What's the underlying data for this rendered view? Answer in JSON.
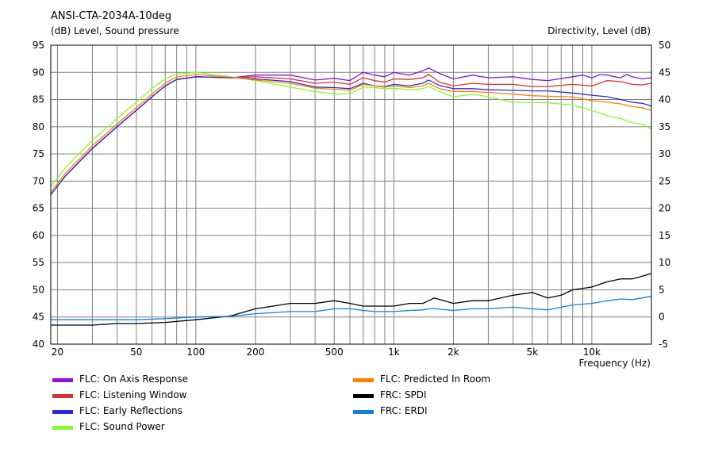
{
  "chart_data": {
    "type": "line",
    "title": "ANSI-CTA-2034A-10deg",
    "ylabel": "(dB)  Level, Sound pressure",
    "y2label": "Directivity, Level  (dB)",
    "xlabel": "Frequency  (Hz)",
    "xscale": "log",
    "xlim": [
      18.5,
      20000
    ],
    "ylim": [
      40,
      95
    ],
    "y2lim": [
      -5,
      50
    ],
    "grid": true,
    "legend_position": "bottom",
    "x_ticks": [
      {
        "value": 20,
        "label": "20"
      },
      {
        "value": 50,
        "label": "50"
      },
      {
        "value": 100,
        "label": "100"
      },
      {
        "value": 200,
        "label": "200"
      },
      {
        "value": 500,
        "label": "500"
      },
      {
        "value": 1000,
        "label": "1k"
      },
      {
        "value": 2000,
        "label": "2k"
      },
      {
        "value": 5000,
        "label": "5k"
      },
      {
        "value": 10000,
        "label": "10k"
      }
    ],
    "y_ticks": [
      "40",
      "45",
      "50",
      "55",
      "60",
      "65",
      "70",
      "75",
      "80",
      "85",
      "90",
      "95"
    ],
    "y2_ticks": [
      "-5",
      "0",
      "5",
      "10",
      "15",
      "20",
      "25",
      "30",
      "35",
      "40",
      "45",
      "50"
    ],
    "legend": [
      {
        "name": "FLC: On Axis Response",
        "color": "#8a16d8"
      },
      {
        "name": "FLC: Listening Window",
        "color": "#d83030"
      },
      {
        "name": "FLC: Early Reflections",
        "color": "#2a2ae0"
      },
      {
        "name": "FLC: Sound Power",
        "color": "#80ff30"
      },
      {
        "name": "FLC: Predicted In Room",
        "color": "#ff8000"
      },
      {
        "name": "FRC: SPDI",
        "color": "#000000"
      },
      {
        "name": "FRC: ERDI",
        "color": "#1080e0"
      }
    ],
    "series": [
      {
        "name": "FLC: On Axis Response",
        "color": "#8a16d8",
        "axis": "left",
        "x": [
          18.5,
          22,
          30,
          40,
          50,
          60,
          70,
          80,
          100,
          150,
          200,
          300,
          400,
          500,
          600,
          700,
          800,
          900,
          1000,
          1200,
          1400,
          1500,
          1700,
          2000,
          2500,
          3000,
          4000,
          5000,
          6000,
          8000,
          9000,
          10000,
          11000,
          12000,
          13000,
          14000,
          15000,
          16000,
          18000,
          20000
        ],
        "y": [
          67.5,
          71,
          76,
          80,
          83,
          85.5,
          87.5,
          88.7,
          89.2,
          89.0,
          89.5,
          89.5,
          88.6,
          88.9,
          88.5,
          90,
          89.5,
          89.2,
          90,
          89.5,
          90.3,
          90.8,
          89.8,
          88.8,
          89.5,
          89,
          89.2,
          88.7,
          88.5,
          89.2,
          89.5,
          89.0,
          89.6,
          89.5,
          89.2,
          89,
          89.6,
          89.2,
          88.8,
          89
        ]
      },
      {
        "name": "FLC: Listening Window",
        "color": "#d83030",
        "axis": "left",
        "x": [
          18.5,
          22,
          30,
          40,
          50,
          60,
          70,
          80,
          100,
          150,
          200,
          300,
          400,
          500,
          600,
          700,
          800,
          900,
          1000,
          1200,
          1400,
          1500,
          1700,
          2000,
          2500,
          3000,
          4000,
          5000,
          6000,
          8000,
          10000,
          12000,
          14000,
          16000,
          18000,
          20000
        ],
        "y": [
          67.5,
          71,
          76,
          80,
          83,
          85.5,
          87.5,
          88.7,
          89.2,
          89.0,
          89.2,
          88.8,
          88,
          88.2,
          87.8,
          89,
          88.5,
          88.2,
          88.8,
          88.7,
          89,
          89.6,
          88.2,
          87.5,
          88,
          87.8,
          87.8,
          87.4,
          87.4,
          87.8,
          87.5,
          88.5,
          88.3,
          87.8,
          87.7,
          88
        ]
      },
      {
        "name": "FLC: Early Reflections",
        "color": "#2a2ae0",
        "axis": "left",
        "x": [
          18.5,
          22,
          30,
          40,
          50,
          60,
          70,
          80,
          100,
          150,
          200,
          300,
          400,
          500,
          600,
          700,
          800,
          900,
          1000,
          1200,
          1400,
          1500,
          1700,
          2000,
          2500,
          3000,
          4000,
          5000,
          6000,
          8000,
          10000,
          12000,
          14000,
          16000,
          18000,
          20000
        ],
        "y": [
          67.5,
          71,
          76,
          80,
          83,
          85.5,
          87.5,
          88.7,
          89.2,
          89.0,
          88.8,
          88.3,
          87.3,
          87.2,
          87,
          88,
          87.5,
          87.4,
          87.8,
          87.5,
          88,
          88.6,
          87.6,
          87.0,
          87,
          86.8,
          86.7,
          86.6,
          86.6,
          86.2,
          85.8,
          85.5,
          85,
          84.5,
          84.3,
          83.8
        ]
      },
      {
        "name": "FLC: Sound Power",
        "color": "#80ff30",
        "axis": "left",
        "x": [
          18.5,
          22,
          30,
          40,
          50,
          60,
          70,
          80,
          100,
          150,
          200,
          300,
          400,
          500,
          600,
          700,
          800,
          900,
          1000,
          1200,
          1400,
          1500,
          1700,
          2000,
          2500,
          3000,
          4000,
          5000,
          6000,
          8000,
          10000,
          12000,
          14000,
          16000,
          18000,
          20000
        ],
        "y": [
          69,
          72.5,
          77.5,
          81.5,
          84.5,
          87,
          88.8,
          89.7,
          90,
          89.2,
          88.5,
          87.3,
          86.5,
          86,
          86.1,
          87.3,
          87.2,
          87,
          87.1,
          86.8,
          87,
          87.4,
          86.5,
          85.5,
          86,
          85.5,
          84.5,
          84.5,
          84.4,
          84,
          83,
          82,
          81.5,
          80.7,
          80.5,
          79.5
        ]
      },
      {
        "name": "FLC: Predicted In Room",
        "color": "#ff8000",
        "axis": "left",
        "x": [
          18.5,
          22,
          30,
          40,
          50,
          60,
          70,
          80,
          100,
          150,
          200,
          300,
          400,
          500,
          600,
          700,
          800,
          900,
          1000,
          1200,
          1400,
          1500,
          1700,
          2000,
          2500,
          3000,
          4000,
          5000,
          6000,
          8000,
          10000,
          12000,
          14000,
          16000,
          18000,
          20000
        ],
        "y": [
          68,
          71.5,
          76.5,
          80.5,
          83.5,
          86,
          88,
          89.2,
          89.6,
          89.1,
          88.6,
          88,
          87.1,
          86.9,
          86.7,
          87.8,
          87.5,
          87.3,
          87.5,
          87.2,
          87.5,
          88,
          87,
          86.5,
          86.5,
          86.3,
          86,
          85.7,
          85.6,
          85.5,
          84.8,
          84.5,
          84.2,
          83.7,
          83.5,
          83
        ]
      },
      {
        "name": "FRC: SPDI",
        "color": "#000000",
        "axis": "right",
        "x": [
          18.5,
          30,
          40,
          50,
          70,
          100,
          150,
          200,
          300,
          400,
          500,
          600,
          700,
          800,
          1000,
          1200,
          1400,
          1500,
          1600,
          2000,
          2500,
          3000,
          4000,
          5000,
          6000,
          7000,
          8000,
          10000,
          12000,
          14000,
          16000,
          18000,
          20000
        ],
        "y": [
          -1.5,
          -1.5,
          -1.2,
          -1.2,
          -1,
          -0.5,
          0.2,
          1.5,
          2.5,
          2.5,
          3,
          2.5,
          2,
          2,
          2,
          2.5,
          2.5,
          3,
          3.5,
          2.5,
          3,
          3,
          4,
          4.5,
          3.5,
          4,
          5,
          5.5,
          6.5,
          7,
          7,
          7.5,
          8
        ]
      },
      {
        "name": "FRC: ERDI",
        "color": "#1080e0",
        "axis": "right",
        "x": [
          18.5,
          30,
          40,
          50,
          70,
          100,
          150,
          200,
          300,
          400,
          500,
          600,
          700,
          800,
          1000,
          1200,
          1400,
          1500,
          1600,
          2000,
          2500,
          3000,
          4000,
          5000,
          6000,
          7000,
          8000,
          10000,
          12000,
          14000,
          16000,
          18000,
          20000
        ],
        "y": [
          -0.5,
          -0.5,
          -0.5,
          -0.5,
          -0.3,
          0,
          0.1,
          0.6,
          1,
          1,
          1.5,
          1.5,
          1.2,
          1,
          1,
          1.2,
          1.3,
          1.5,
          1.5,
          1.2,
          1.5,
          1.5,
          1.8,
          1.5,
          1.3,
          1.8,
          2.2,
          2.5,
          3,
          3.3,
          3.2,
          3.5,
          3.8
        ]
      }
    ]
  }
}
